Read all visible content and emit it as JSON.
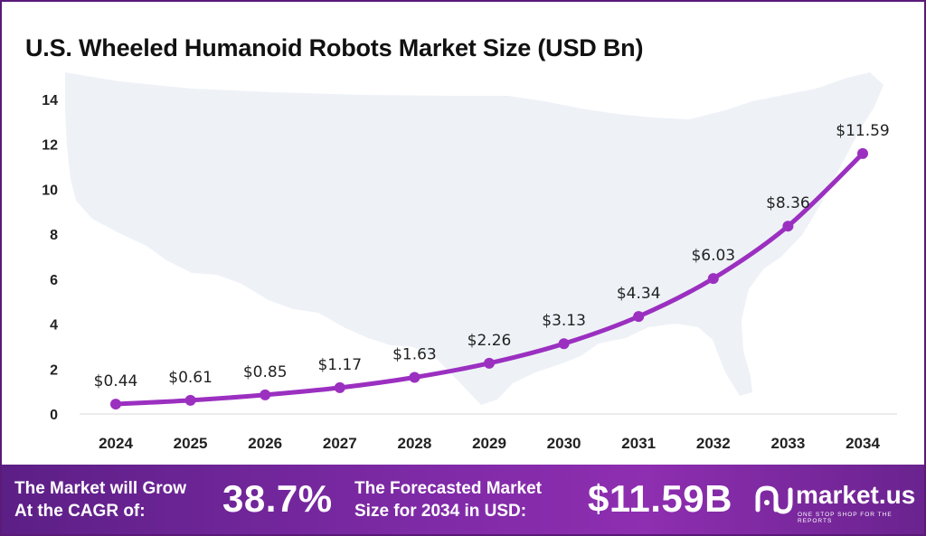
{
  "title": "U.S. Wheeled Humanoid Robots Market Size (USD Bn)",
  "chart_data": {
    "type": "line",
    "title": "U.S. Wheeled Humanoid Robots Market Size (USD Bn)",
    "xlabel": "",
    "ylabel": "",
    "ylim": [
      0,
      14
    ],
    "yticks": [
      0,
      2,
      4,
      6,
      8,
      10,
      12,
      14
    ],
    "categories": [
      "2024",
      "2025",
      "2026",
      "2027",
      "2028",
      "2029",
      "2030",
      "2031",
      "2032",
      "2033",
      "2034"
    ],
    "values": [
      0.44,
      0.61,
      0.85,
      1.17,
      1.63,
      2.26,
      3.13,
      4.34,
      6.03,
      8.36,
      11.59
    ],
    "data_labels": [
      "$0.44",
      "$0.61",
      "$0.85",
      "$1.17",
      "$1.63",
      "$2.26",
      "$3.13",
      "$4.34",
      "$6.03",
      "$8.36",
      "$11.59"
    ],
    "grid": false,
    "series_color": "#9b30c0",
    "background_map": "us-map-silhouette"
  },
  "footer": {
    "cagr_text_line1": "The Market will Grow",
    "cagr_text_line2": "At the CAGR of:",
    "cagr_value": "38.7%",
    "forecast_text_line1": "The Forecasted Market",
    "forecast_text_line2": "Size for 2034 in USD:",
    "forecast_value": "$11.59B",
    "logo_text": "market.us",
    "logo_tagline": "ONE STOP SHOP FOR THE REPORTS",
    "logo_icon": "market-us-logo-icon"
  },
  "colors": {
    "line": "#9b30c0",
    "footer_start": "#5c1f86",
    "footer_end": "#8e2eb0",
    "frame": "#5a1a78",
    "map": "#eef2f7"
  }
}
